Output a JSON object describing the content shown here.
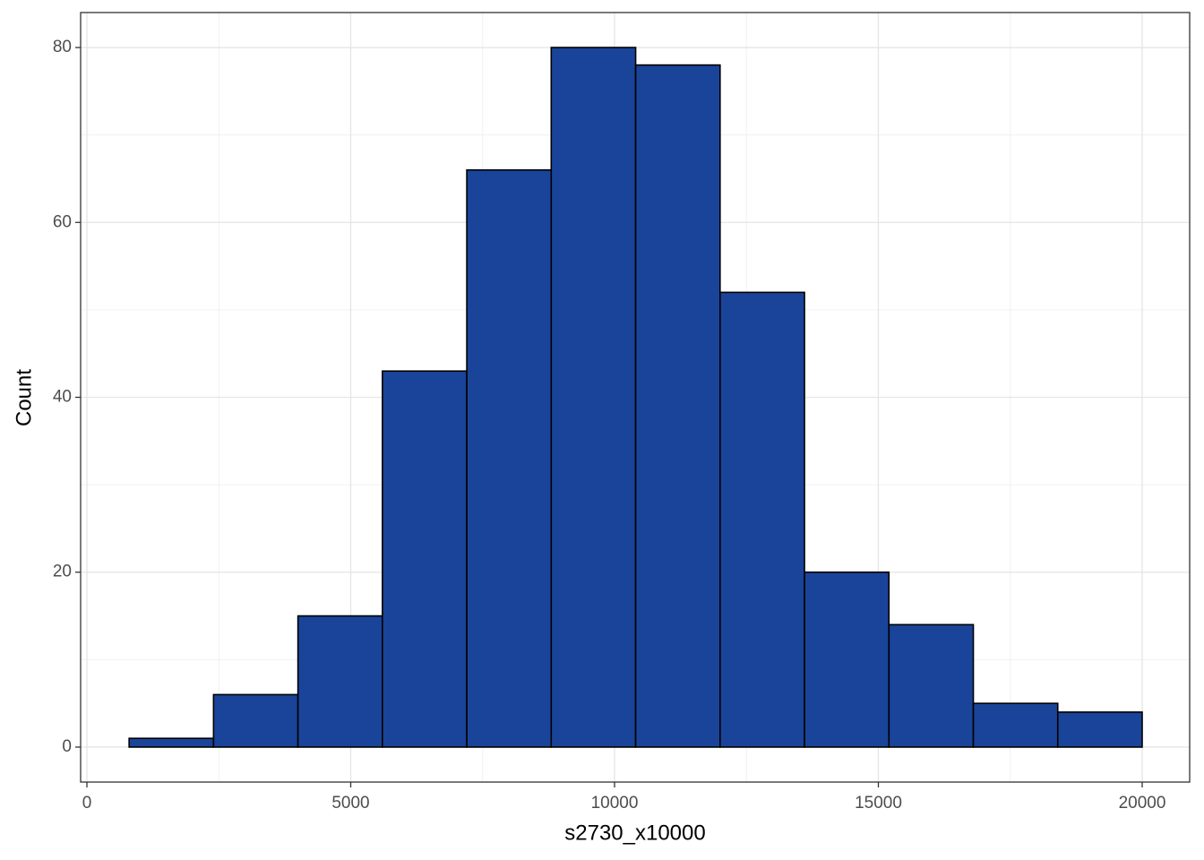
{
  "chart_data": {
    "type": "histogram",
    "x_label": "s2730_x10000",
    "y_label": "Count",
    "bins": [
      800,
      2400,
      4000,
      5600,
      7200,
      8800,
      10400,
      12000,
      13600,
      15200,
      16800,
      18400,
      20000
    ],
    "values": [
      1,
      6,
      15,
      43,
      66,
      80,
      78,
      52,
      20,
      14,
      5,
      4
    ],
    "color": "#1a4499",
    "xlim": [
      -119,
      20900
    ],
    "ylim": [
      -4,
      84
    ],
    "xticks": [
      0,
      5000,
      10000,
      15000,
      20000
    ],
    "yticks": [
      0,
      20,
      40,
      60,
      80
    ],
    "grid": true
  }
}
